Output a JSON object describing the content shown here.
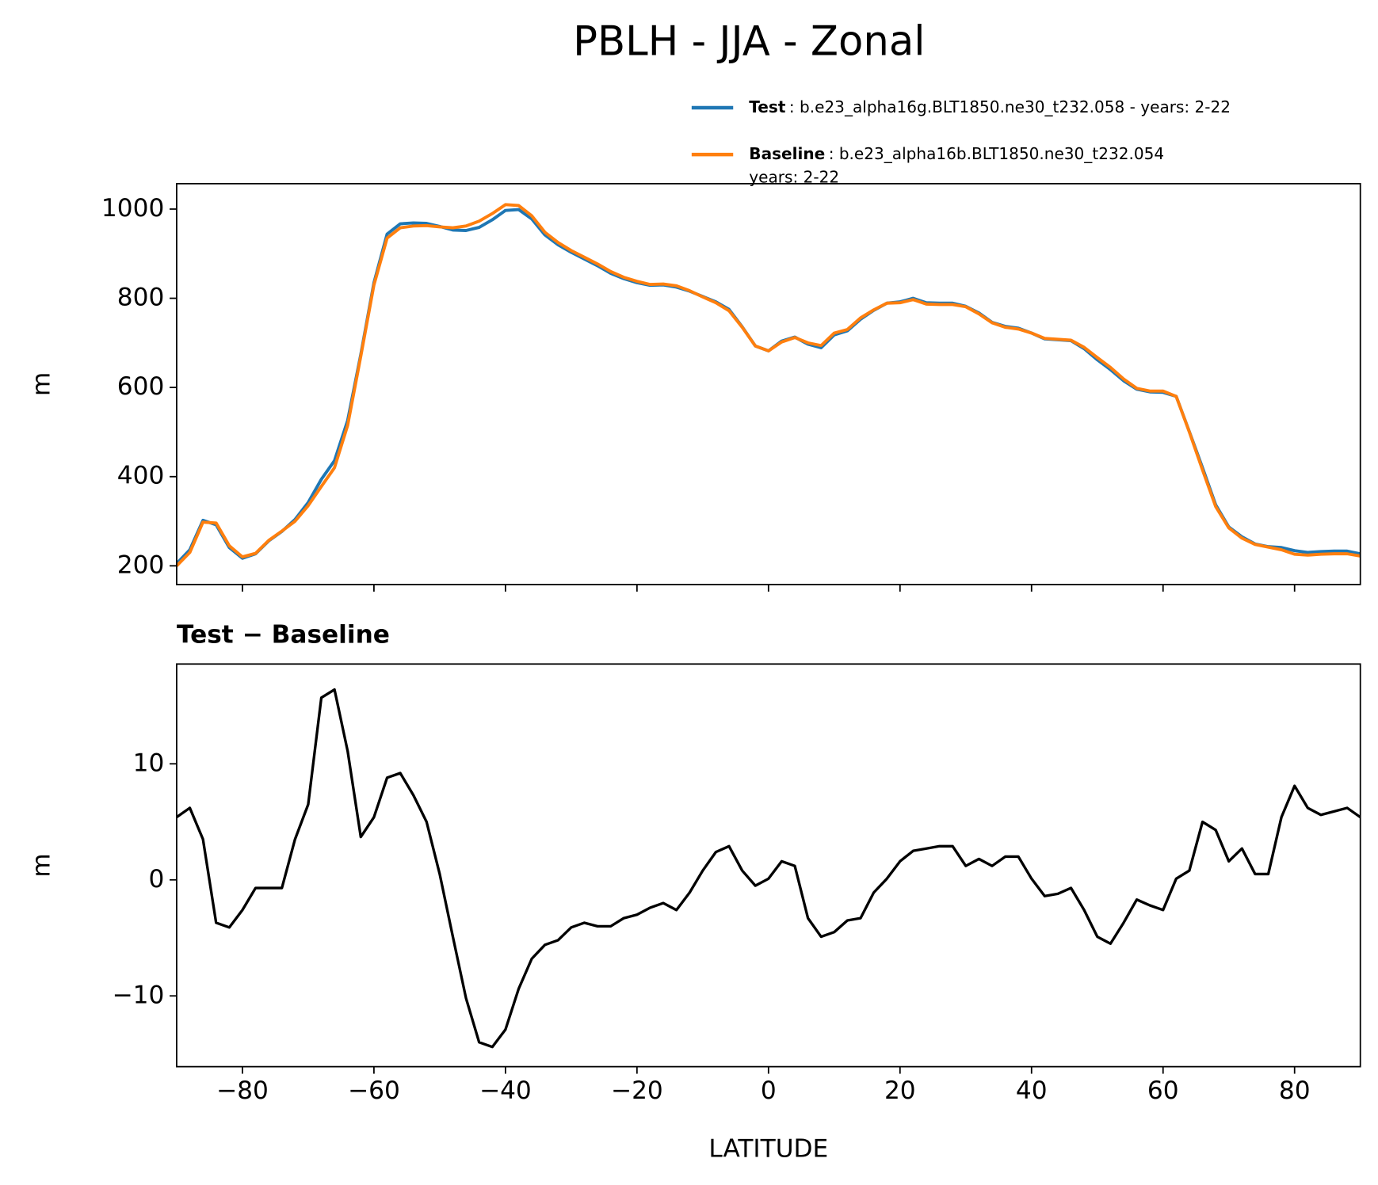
{
  "title": "PBLH - JJA - Zonal",
  "chart_data": [
    {
      "type": "line",
      "ylabel": "m",
      "xlim": [
        -90,
        90
      ],
      "xticks": [
        -80,
        -60,
        -40,
        -20,
        0,
        20,
        40,
        60,
        80
      ],
      "ylim": [
        158,
        1057
      ],
      "yticks": [
        200,
        400,
        600,
        800,
        1000
      ],
      "x": [
        -90,
        -88,
        -86,
        -84,
        -82,
        -80,
        -78,
        -76,
        -74,
        -72,
        -70,
        -68,
        -66,
        -64,
        -62,
        -60,
        -58,
        -56,
        -54,
        -52,
        -50,
        -48,
        -46,
        -44,
        -42,
        -40,
        -38,
        -36,
        -34,
        -32,
        -30,
        -28,
        -26,
        -24,
        -22,
        -20,
        -18,
        -16,
        -14,
        -12,
        -10,
        -8,
        -6,
        -4,
        -2,
        0,
        2,
        4,
        6,
        8,
        10,
        12,
        14,
        16,
        18,
        20,
        22,
        24,
        26,
        28,
        30,
        32,
        34,
        36,
        38,
        40,
        42,
        44,
        46,
        48,
        50,
        52,
        54,
        56,
        58,
        60,
        62,
        64,
        66,
        68,
        70,
        72,
        74,
        76,
        78,
        80,
        82,
        84,
        86,
        88,
        90
      ],
      "series": [
        {
          "name": "Test",
          "description": [
            ": b.e23_alpha16g.BLT1850.ne30_t232.058 - years: 2-22"
          ],
          "color": "#1f77b4",
          "values": [
            205,
            236,
            302,
            292,
            241,
            217,
            227,
            256,
            277,
            304,
            342,
            394,
            436,
            526,
            674,
            835,
            944,
            967,
            969,
            968,
            961,
            953,
            952,
            959,
            976,
            997,
            999,
            978,
            942,
            920,
            903,
            888,
            873,
            856,
            844,
            835,
            829,
            830,
            825,
            816,
            804,
            792,
            775,
            736,
            693,
            682,
            704,
            713,
            697,
            689,
            718,
            727,
            753,
            773,
            789,
            792,
            800,
            790,
            789,
            789,
            782,
            767,
            746,
            737,
            733,
            722,
            709,
            707,
            705,
            687,
            662,
            640,
            615,
            596,
            590,
            589,
            580,
            501,
            420,
            337,
            287,
            265,
            249,
            243,
            241,
            234,
            230,
            232,
            233,
            233,
            227
          ]
        },
        {
          "name": "Baseline",
          "description": [
            ": b.e23_alpha16b.BLT1850.ne30_t232.054",
            "years: 2-22"
          ],
          "color": "#ff7f0e",
          "values": [
            200,
            230,
            298,
            296,
            245,
            220,
            228,
            257,
            278,
            300,
            335,
            378,
            420,
            515,
            670,
            830,
            935,
            958,
            962,
            963,
            960,
            958,
            962,
            973,
            990,
            1010,
            1008,
            985,
            948,
            925,
            907,
            892,
            877,
            860,
            847,
            838,
            831,
            832,
            828,
            817,
            803,
            790,
            772,
            735,
            693,
            682,
            702,
            712,
            700,
            694,
            722,
            730,
            756,
            774,
            789,
            790,
            797,
            787,
            786,
            786,
            781,
            765,
            745,
            735,
            731,
            722,
            710,
            708,
            706,
            690,
            667,
            645,
            619,
            598,
            592,
            592,
            580,
            500,
            415,
            333,
            285,
            262,
            248,
            242,
            236,
            226,
            224,
            226,
            227,
            227,
            222
          ]
        }
      ]
    },
    {
      "type": "line",
      "title": "Test − Baseline",
      "xlabel": "LATITUDE",
      "ylabel": "m",
      "xlim": [
        -90,
        90
      ],
      "xticks": [
        {
          "value": -80,
          "label": "−80"
        },
        {
          "value": -60,
          "label": "−60"
        },
        {
          "value": -40,
          "label": "−40"
        },
        {
          "value": -20,
          "label": "−20"
        },
        0,
        20,
        40,
        60,
        80
      ],
      "ylim": [
        -16.1,
        18.6
      ],
      "yticks": [
        {
          "value": -10,
          "label": "−10"
        },
        0,
        10
      ],
      "x": [
        -90,
        -88,
        -86,
        -84,
        -82,
        -80,
        -78,
        -76,
        -74,
        -72,
        -70,
        -68,
        -66,
        -64,
        -62,
        -60,
        -58,
        -56,
        -54,
        -52,
        -50,
        -48,
        -46,
        -44,
        -42,
        -40,
        -38,
        -36,
        -34,
        -32,
        -30,
        -28,
        -26,
        -24,
        -22,
        -20,
        -18,
        -16,
        -14,
        -12,
        -10,
        -8,
        -6,
        -4,
        -2,
        0,
        2,
        4,
        6,
        8,
        10,
        12,
        14,
        16,
        18,
        20,
        22,
        24,
        26,
        28,
        30,
        32,
        34,
        36,
        38,
        40,
        42,
        44,
        46,
        48,
        50,
        52,
        54,
        56,
        58,
        60,
        62,
        64,
        66,
        68,
        70,
        72,
        74,
        76,
        78,
        80,
        82,
        84,
        86,
        88,
        90
      ],
      "color": "#000000",
      "values": [
        5.4,
        6.2,
        3.5,
        -3.7,
        -4.1,
        -2.6,
        -0.7,
        -0.7,
        -0.7,
        3.5,
        6.5,
        15.7,
        16.4,
        11.1,
        3.7,
        5.4,
        8.8,
        9.2,
        7.3,
        5.0,
        0.5,
        -4.9,
        -10.2,
        -14,
        -14.4,
        -12.9,
        -9.4,
        -6.8,
        -5.6,
        -5.2,
        -4.1,
        -3.7,
        -4,
        -4,
        -3.3,
        -3,
        -2.4,
        -2,
        -2.6,
        -1.1,
        0.8,
        2.4,
        2.9,
        0.8,
        -0.5,
        0.1,
        1.6,
        1.2,
        -3.3,
        -4.9,
        -4.5,
        -3.5,
        -3.3,
        -1.1,
        0.1,
        1.6,
        2.5,
        2.7,
        2.9,
        2.9,
        1.2,
        1.8,
        1.2,
        2,
        2,
        0.1,
        -1.4,
        -1.2,
        -0.7,
        -2.6,
        -4.9,
        -5.5,
        -3.7,
        -1.7,
        -2.2,
        -2.6,
        0.1,
        0.8,
        5,
        4.3,
        1.6,
        2.7,
        0.5,
        0.5,
        5.4,
        8.1,
        6.2,
        5.6,
        5.9,
        6.2,
        5.4
      ]
    }
  ]
}
